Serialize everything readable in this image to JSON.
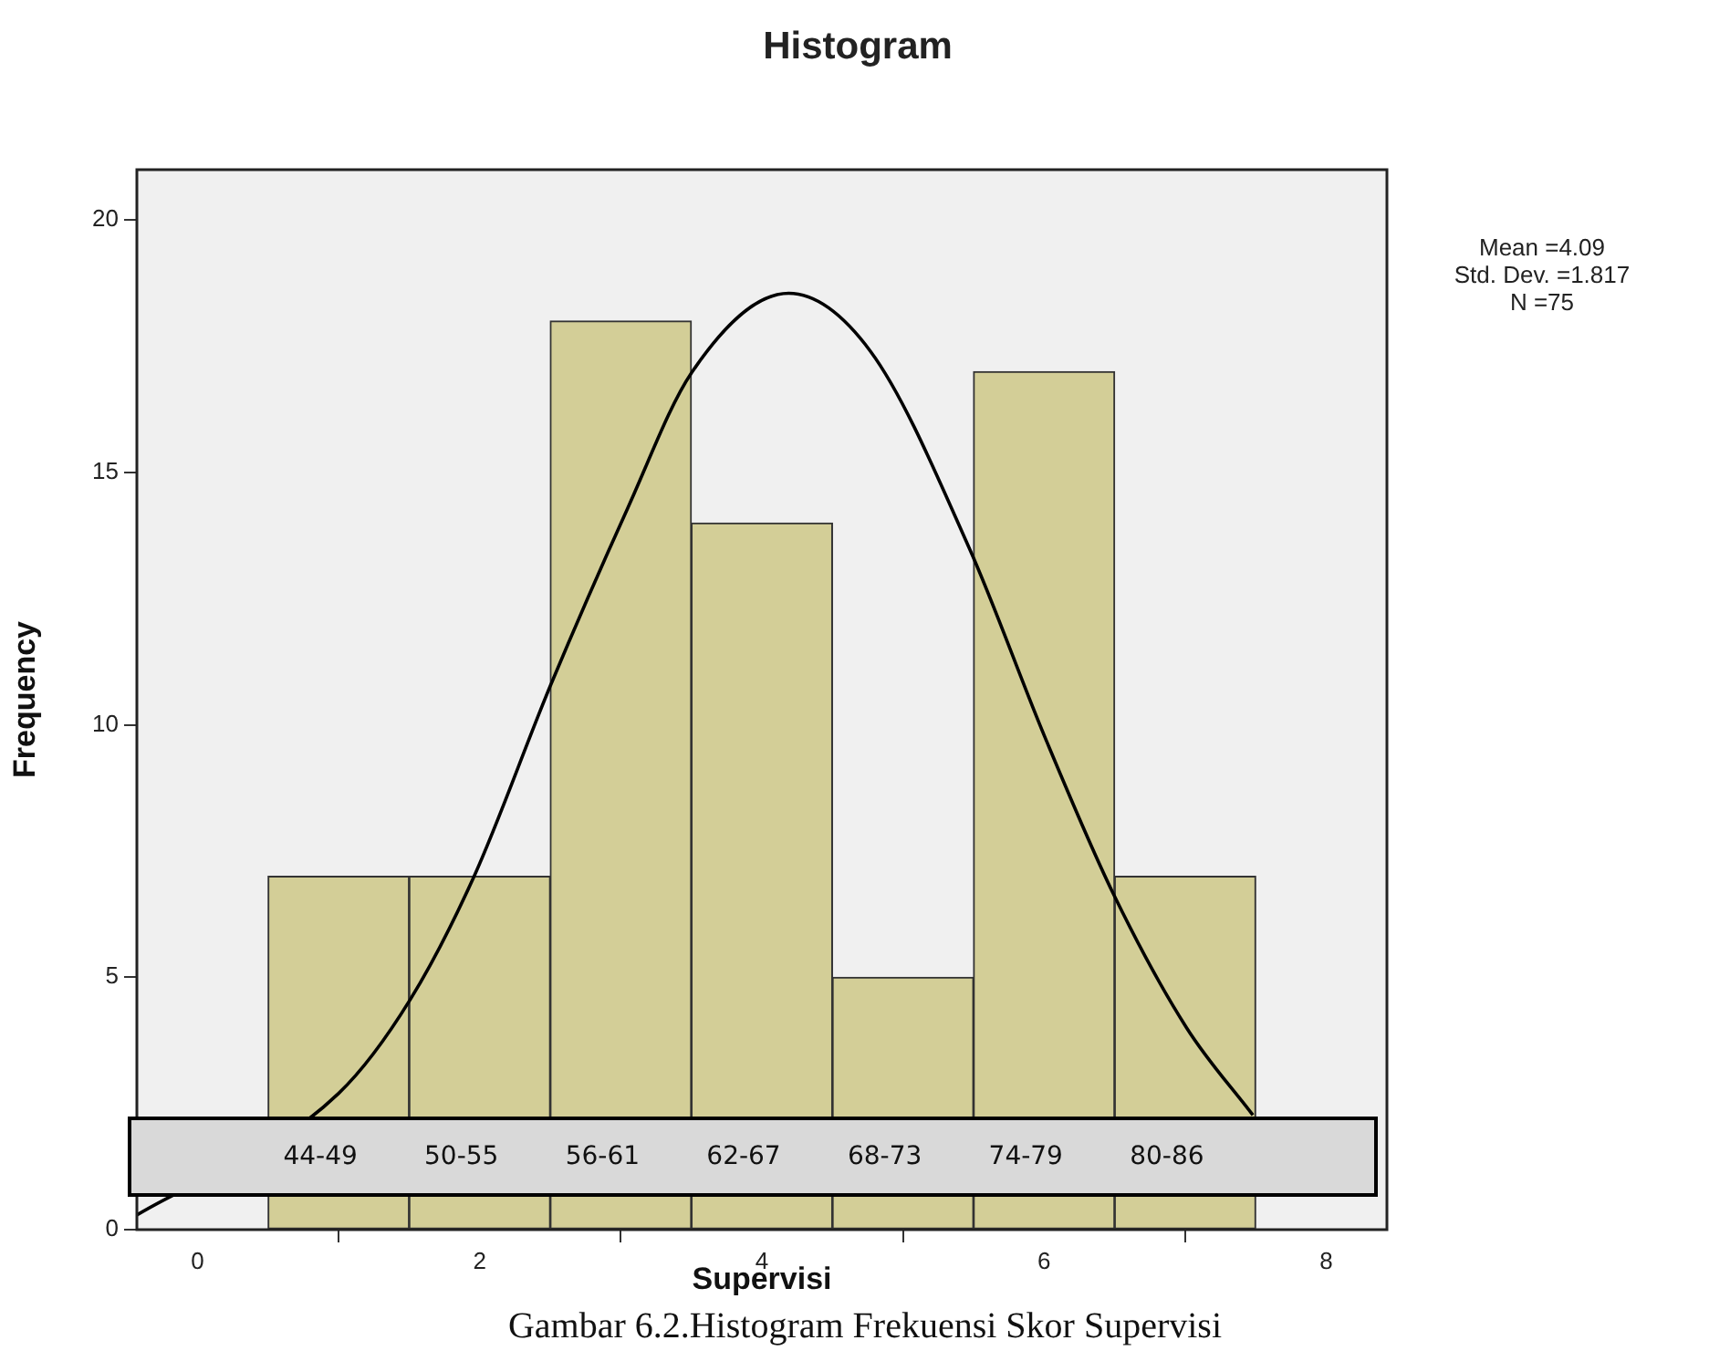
{
  "chart_data": {
    "type": "histogram",
    "title": "Histogram",
    "xlabel": "Supervisi",
    "ylabel": "Frequency",
    "bins": [
      0.5,
      1.5,
      2.5,
      3.5,
      4.5,
      5.5,
      6.5,
      7.5
    ],
    "values": [
      7,
      7,
      18,
      14,
      5,
      17,
      7
    ],
    "color": "#d3ce97",
    "series": [
      {
        "type": "line",
        "color": "#000000",
        "x": [
          -0.43,
          1.0,
          1.51,
          1.96,
          2.5,
          3.05,
          3.5,
          4.19,
          4.77,
          5.47,
          6.01,
          6.49,
          7.01,
          7.48
        ],
        "values": [
          0.29,
          2.7,
          4.57,
          7.0,
          10.77,
          14.3,
          16.97,
          18.55,
          17.4,
          13.5,
          9.73,
          6.66,
          4.0,
          2.27
        ]
      }
    ],
    "xlim": [
      -0.43,
      8.43
    ],
    "xticks": [
      0,
      2,
      4,
      6,
      8
    ],
    "ylim": [
      0,
      21
    ],
    "yticks": [
      0,
      5,
      10,
      15,
      20
    ],
    "grid": false,
    "legend": false,
    "marker": "none",
    "line_style": "solid",
    "annotations": [
      "Mean =4.09\nStd. Dev. =1.817\nN =75",
      "44-49",
      "50-55",
      "56-61",
      "62-67",
      "68-73",
      "74-79",
      "80-86",
      "Gambar 6.2.Histogram Frekuensi Skor Supervisi"
    ]
  }
}
